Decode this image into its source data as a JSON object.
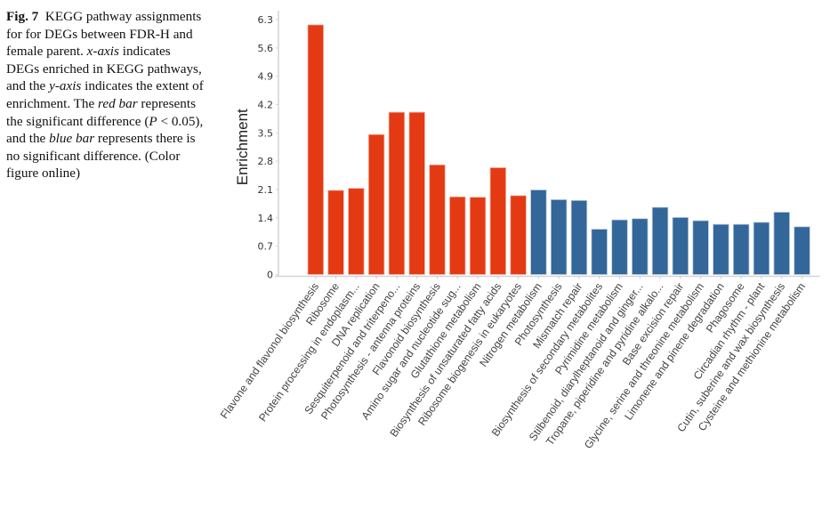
{
  "caption": {
    "fig_label": "Fig. 7",
    "part1": "KEGG pathway assignments for for DEGs between FDR-H and female parent.",
    "x_axis_term": "x-axis",
    "part2": "indicates DEGs enriched in KEGG pathways, and the",
    "y_axis_term": "y-axis",
    "part3": "indicates the extent of enrichment. The",
    "red_bar_term": "red bar",
    "part4": "represents the significant difference (",
    "p_symbol": "P",
    "part5": "< 0.05), and the",
    "blue_bar_term": "blue bar",
    "part6": "represents there is no significant difference. (Color figure online)"
  },
  "colors": {
    "significant": "#e43a14",
    "not_significant": "#336699"
  },
  "chart_data": {
    "type": "bar",
    "title": "",
    "xlabel": "",
    "ylabel": "Enrichment",
    "ylim": [
      0,
      6.3
    ],
    "yticks": [
      "0",
      "0.7",
      "1.4",
      "2.1",
      "2.8",
      "3.5",
      "4.2",
      "4.9",
      "5.6",
      "6.3"
    ],
    "grid": false,
    "legend": "none",
    "categories": [
      "Flavone and flavonol biosynthesis",
      "Ribosome",
      "Protein processing in endoplasm...",
      "DNA replication",
      "Sesquiterpenoid and triterpeno...",
      "Photosynthesis - antenna proteins",
      "Flavonoid biosynthesis",
      "Amino sugar and nucleotide sug...",
      "Glutathione metabolism",
      "Biosynthesis of unsaturated fatty acids",
      "Ribosome biogenesis in eukaryotes",
      "Nitrogen metabolism",
      "Photosynthesis",
      "Mismatch repair",
      "Biosynthesis of secondary metabolites",
      "Pyrimidine metabolism",
      "Stilbenoid, diarylheptanoid and ginger...",
      "Tropane, piperidine and pyridine alkalo...",
      "Base excision repair",
      "Glycine, serine and threonine metabolism",
      "Limonene and pinene degradation",
      "Phagosome",
      "Circadian rhythm - plant",
      "Cutin, suberine and wax biosynthesis",
      "Cysteine and methionine metabolism"
    ],
    "values": [
      6.17,
      2.08,
      2.13,
      3.46,
      4.01,
      4.01,
      2.71,
      1.92,
      1.91,
      2.64,
      1.95,
      2.09,
      1.85,
      1.83,
      1.12,
      1.35,
      1.38,
      1.66,
      1.41,
      1.33,
      1.24,
      1.24,
      1.29,
      1.54,
      1.18
    ],
    "significant": [
      true,
      true,
      true,
      true,
      true,
      true,
      true,
      true,
      true,
      true,
      true,
      false,
      false,
      false,
      false,
      false,
      false,
      false,
      false,
      false,
      false,
      false,
      false,
      false,
      false
    ]
  }
}
